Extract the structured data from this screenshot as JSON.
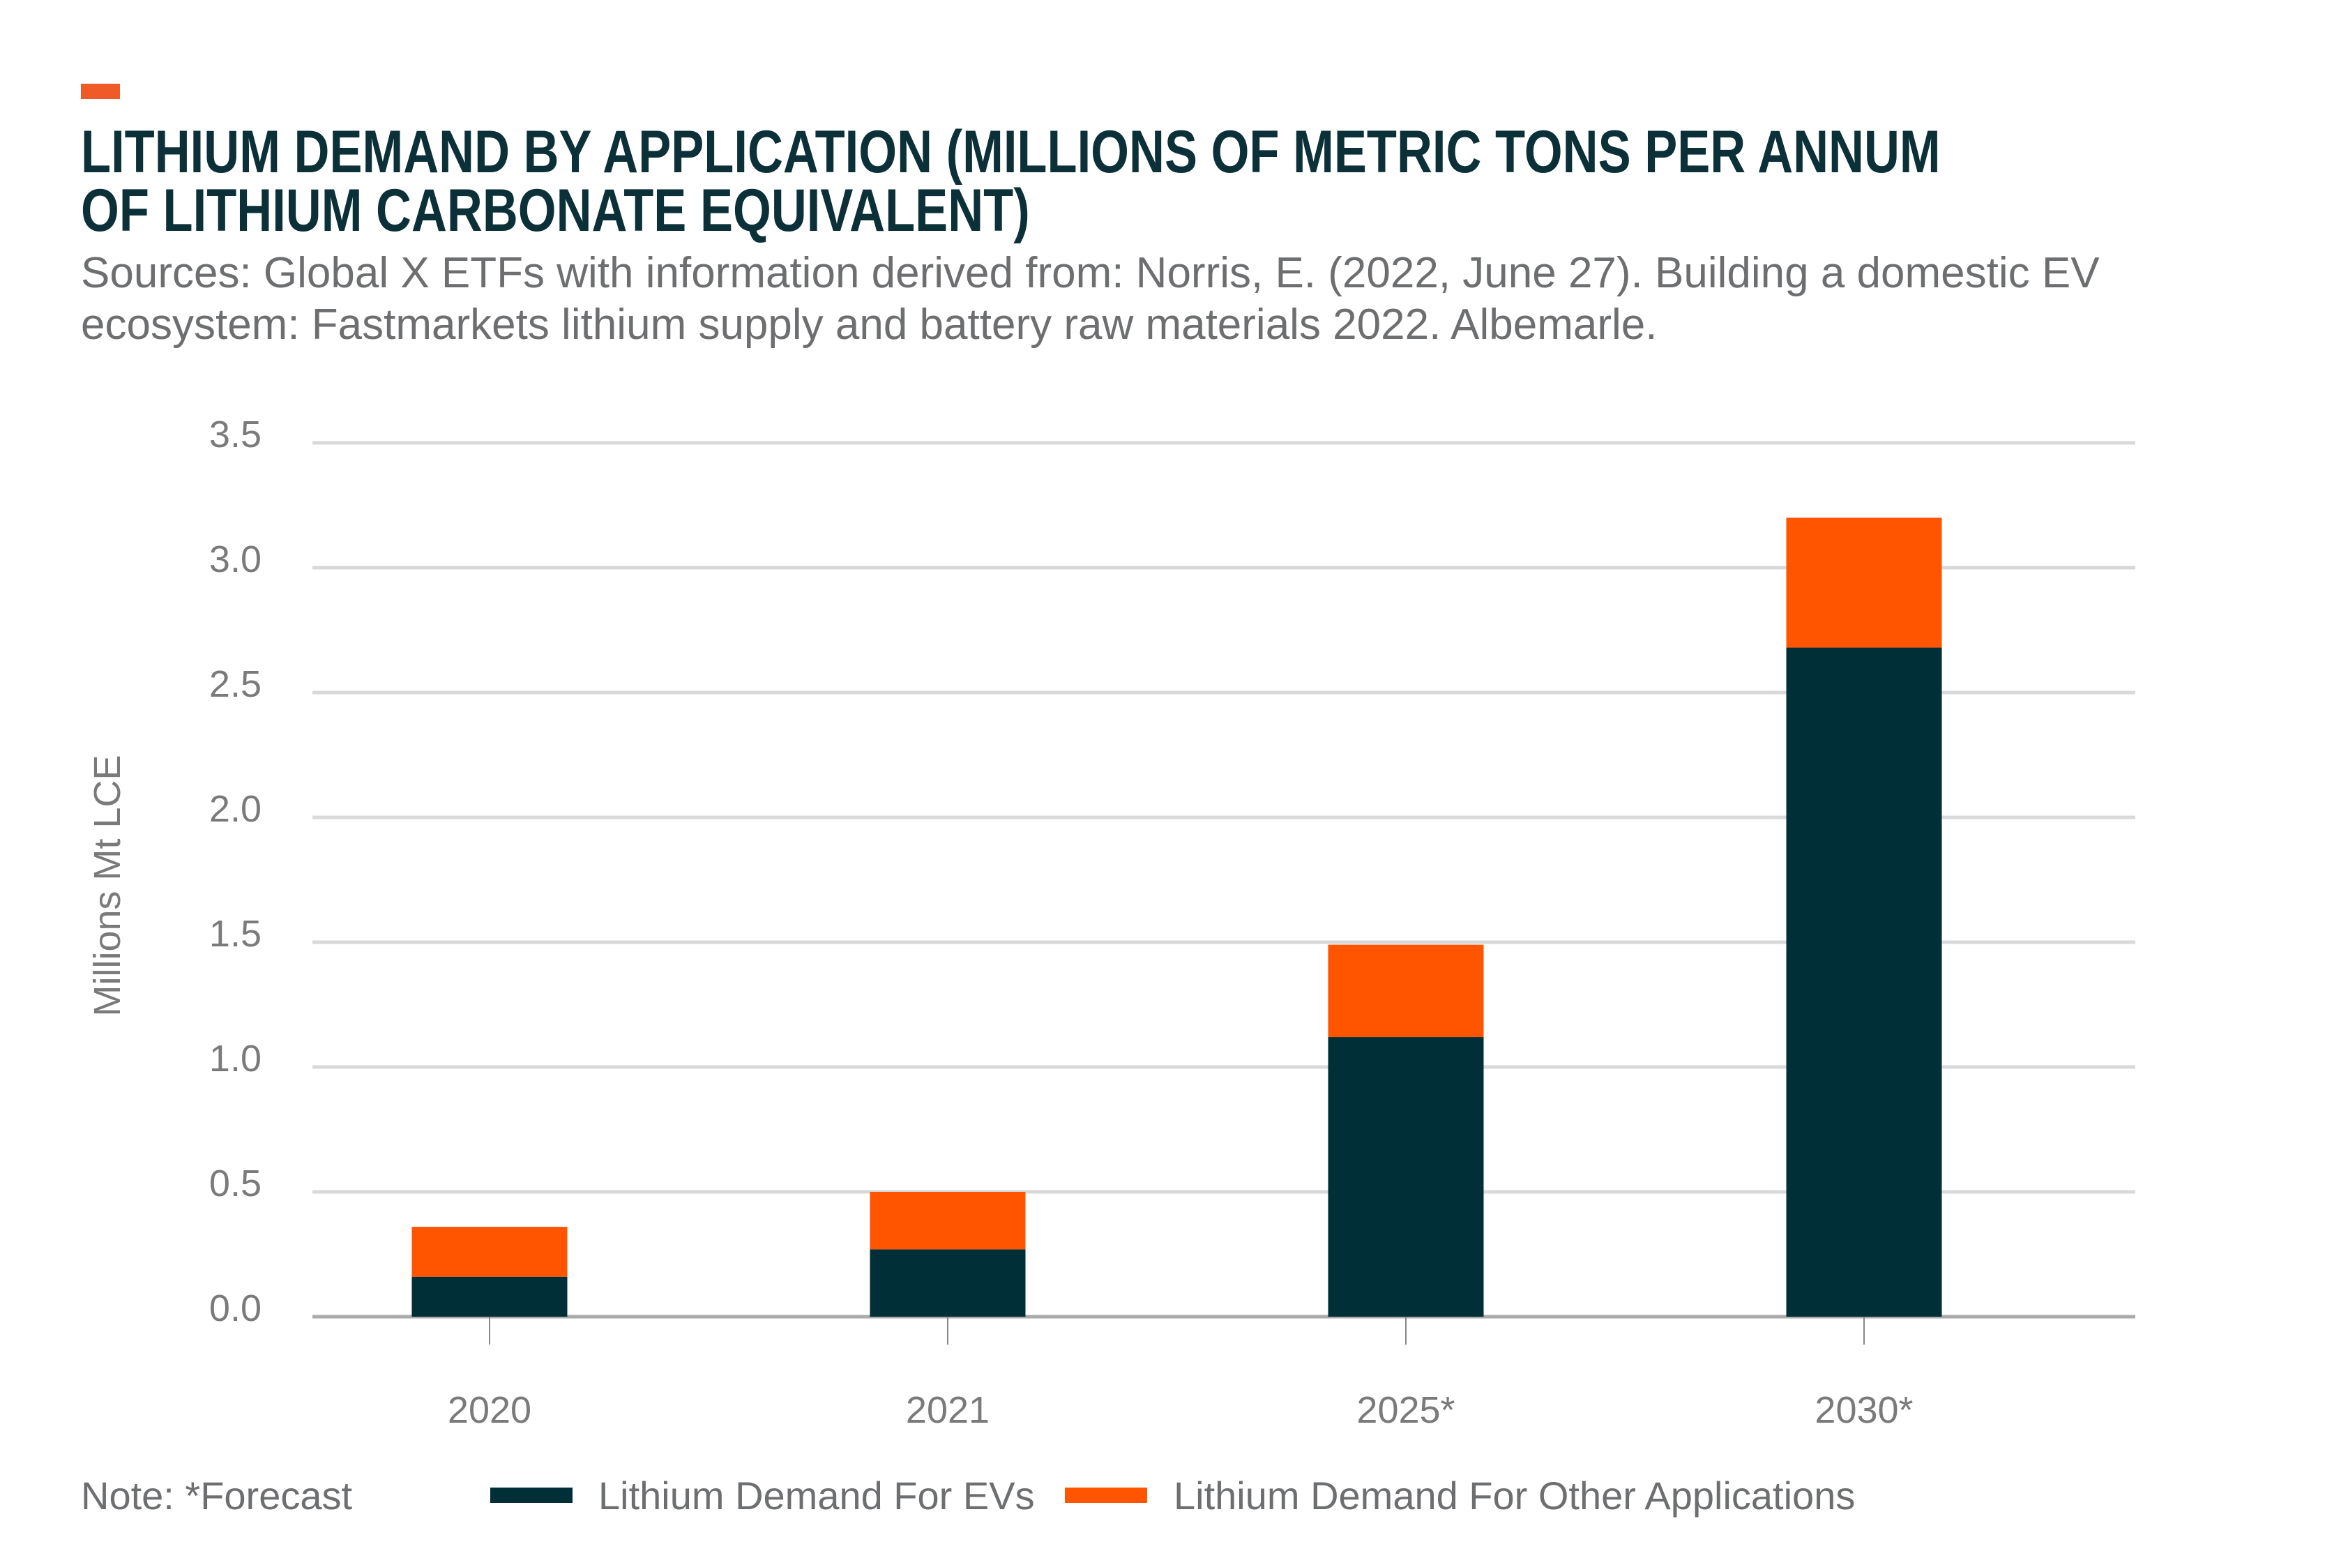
{
  "accent_color": "#f05a28",
  "title_lines": [
    "LITHIUM DEMAND BY APPLICATION (MILLIONS OF METRIC TONS PER ANNUM",
    "OF LITHIUM CARBONATE EQUIVALENT)"
  ],
  "subtitle_lines": [
    "Sources: Global X ETFs with information derived from: Norris, E. (2022, June 27). Building a domestic EV",
    "ecosystem: Fastmarkets lithium supply and battery raw materials 2022. Albemarle."
  ],
  "note": "Note: *Forecast",
  "chart_data": {
    "type": "bar",
    "stacked": true,
    "title": "LITHIUM DEMAND BY APPLICATION (MILLIONS OF METRIC TONS PER ANNUM OF LITHIUM CARBONATE EQUIVALENT)",
    "xlabel": "",
    "ylabel": "Millions Mt LCE",
    "categories": [
      "2020",
      "2021",
      "2025*",
      "2030*"
    ],
    "series": [
      {
        "name": "Lithium Demand For EVs",
        "color": "#012f38",
        "values": [
          0.16,
          0.27,
          1.12,
          2.68
        ]
      },
      {
        "name": "Lithium Demand For Other Applications",
        "color": "#ff5400",
        "values": [
          0.2,
          0.23,
          0.37,
          0.52
        ]
      }
    ],
    "ylim": [
      0,
      3.5
    ],
    "yticks": [
      "0.0",
      "0.5",
      "1.0",
      "1.5",
      "2.0",
      "2.5",
      "3.0",
      "3.5"
    ],
    "grid": true,
    "legend_position": "bottom"
  }
}
